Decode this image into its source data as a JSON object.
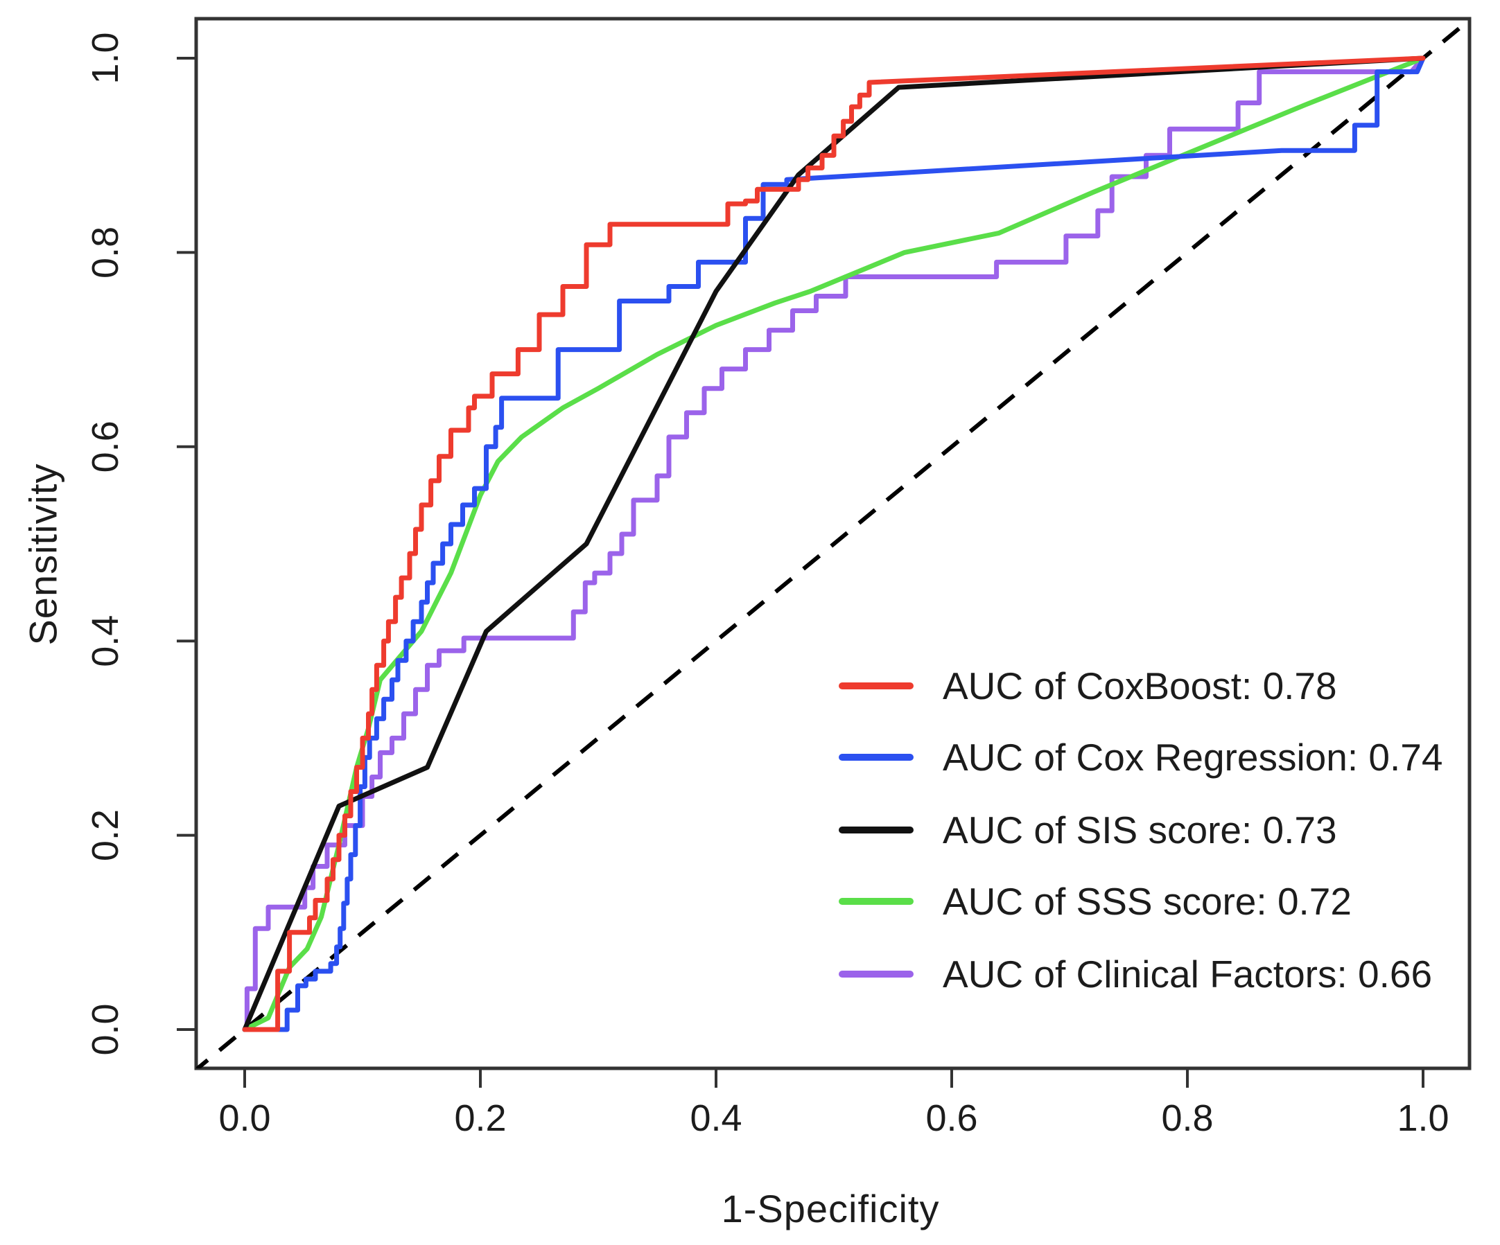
{
  "figure": {
    "background": "#ffffff",
    "axis_color": "#333333",
    "text_color": "#1c1c1c"
  },
  "chart_data": {
    "type": "line",
    "subtype": "ROC curves",
    "title": "",
    "xlabel": "1-Specificity",
    "ylabel": "Sensitivity",
    "xlim": [
      -0.045,
      1.045
    ],
    "ylim": [
      -0.045,
      1.045
    ],
    "grid": "off",
    "legend_position": "bottom-right",
    "x_ticks": [
      0.0,
      0.2,
      0.4,
      0.6,
      0.8,
      1.0
    ],
    "y_ticks": [
      0.0,
      0.2,
      0.4,
      0.6,
      0.8,
      1.0
    ],
    "x_tick_labels": [
      "0.0",
      "0.2",
      "0.4",
      "0.6",
      "0.8",
      "1.0"
    ],
    "y_tick_labels": [
      "0.0",
      "0.2",
      "0.4",
      "0.6",
      "0.8",
      "1.0"
    ],
    "diagonal_reference": {
      "style": "dashed",
      "color": "#000000",
      "points": [
        [
          -0.045,
          -0.045
        ],
        [
          1.045,
          1.045
        ]
      ]
    },
    "series": [
      {
        "name": "CoxBoost",
        "auc": 0.78,
        "legend_label": "AUC of CoxBoost: 0.78",
        "color": "#ee3b2e",
        "style": "step",
        "jumps": [
          [
            0.028,
            0.06
          ],
          [
            0.038,
            0.1
          ],
          [
            0.055,
            0.115
          ],
          [
            0.06,
            0.133
          ],
          [
            0.07,
            0.155
          ],
          [
            0.075,
            0.175
          ],
          [
            0.08,
            0.2
          ],
          [
            0.085,
            0.22
          ],
          [
            0.09,
            0.245
          ],
          [
            0.095,
            0.27
          ],
          [
            0.1,
            0.3
          ],
          [
            0.105,
            0.325
          ],
          [
            0.108,
            0.35
          ],
          [
            0.112,
            0.375
          ],
          [
            0.118,
            0.4
          ],
          [
            0.122,
            0.42
          ],
          [
            0.128,
            0.445
          ],
          [
            0.133,
            0.465
          ],
          [
            0.14,
            0.49
          ],
          [
            0.145,
            0.515
          ],
          [
            0.15,
            0.54
          ],
          [
            0.158,
            0.565
          ],
          [
            0.165,
            0.59
          ],
          [
            0.175,
            0.617
          ],
          [
            0.19,
            0.64
          ],
          [
            0.195,
            0.652
          ],
          [
            0.21,
            0.675
          ],
          [
            0.232,
            0.7
          ],
          [
            0.25,
            0.736
          ],
          [
            0.27,
            0.765
          ],
          [
            0.29,
            0.808
          ],
          [
            0.31,
            0.829
          ],
          [
            0.41,
            0.85
          ],
          [
            0.425,
            0.853
          ],
          [
            0.435,
            0.865
          ],
          [
            0.47,
            0.875
          ],
          [
            0.478,
            0.887
          ],
          [
            0.49,
            0.9
          ],
          [
            0.5,
            0.92
          ],
          [
            0.508,
            0.935
          ],
          [
            0.515,
            0.95
          ],
          [
            0.522,
            0.962
          ],
          [
            0.53,
            0.975
          ]
        ],
        "tail": [
          [
            1.0,
            1.0
          ]
        ]
      },
      {
        "name": "Cox Regression",
        "auc": 0.74,
        "legend_label": "AUC of Cox Regression: 0.74",
        "color": "#2b50f0",
        "style": "step",
        "jumps": [
          [
            0.036,
            0.02
          ],
          [
            0.045,
            0.045
          ],
          [
            0.052,
            0.052
          ],
          [
            0.06,
            0.06
          ],
          [
            0.073,
            0.068
          ],
          [
            0.078,
            0.085
          ],
          [
            0.081,
            0.104
          ],
          [
            0.084,
            0.13
          ],
          [
            0.087,
            0.155
          ],
          [
            0.09,
            0.18
          ],
          [
            0.094,
            0.21
          ],
          [
            0.098,
            0.25
          ],
          [
            0.102,
            0.28
          ],
          [
            0.106,
            0.3
          ],
          [
            0.112,
            0.32
          ],
          [
            0.118,
            0.34
          ],
          [
            0.125,
            0.36
          ],
          [
            0.13,
            0.38
          ],
          [
            0.137,
            0.4
          ],
          [
            0.143,
            0.42
          ],
          [
            0.15,
            0.44
          ],
          [
            0.155,
            0.46
          ],
          [
            0.16,
            0.48
          ],
          [
            0.168,
            0.5
          ],
          [
            0.175,
            0.52
          ],
          [
            0.185,
            0.54
          ],
          [
            0.195,
            0.557
          ],
          [
            0.205,
            0.6
          ],
          [
            0.213,
            0.62
          ],
          [
            0.218,
            0.65
          ],
          [
            0.266,
            0.7
          ],
          [
            0.318,
            0.75
          ],
          [
            0.36,
            0.765
          ],
          [
            0.385,
            0.79
          ],
          [
            0.425,
            0.835
          ],
          [
            0.44,
            0.87
          ],
          [
            0.46,
            0.875
          ]
        ],
        "tail": [
          [
            0.88,
            0.905
          ],
          [
            0.942,
            0.905
          ],
          [
            0.942,
            0.931
          ],
          [
            0.961,
            0.931
          ],
          [
            0.961,
            0.986
          ],
          [
            0.995,
            0.986
          ],
          [
            1.0,
            1.0
          ]
        ]
      },
      {
        "name": "SIS score",
        "auc": 0.73,
        "legend_label": "AUC of SIS score: 0.73",
        "color": "#111111",
        "style": "line",
        "points": [
          [
            0,
            0
          ],
          [
            0.08,
            0.23
          ],
          [
            0.155,
            0.27
          ],
          [
            0.205,
            0.41
          ],
          [
            0.29,
            0.5
          ],
          [
            0.4,
            0.76
          ],
          [
            0.47,
            0.88
          ],
          [
            0.555,
            0.97
          ],
          [
            1.0,
            1.0
          ]
        ]
      },
      {
        "name": "SSS score",
        "auc": 0.72,
        "legend_label": "AUC of SSS score: 0.72",
        "color": "#5ade49",
        "style": "line",
        "points": [
          [
            0,
            0
          ],
          [
            0.02,
            0.012
          ],
          [
            0.038,
            0.064
          ],
          [
            0.053,
            0.083
          ],
          [
            0.065,
            0.116
          ],
          [
            0.08,
            0.19
          ],
          [
            0.095,
            0.27
          ],
          [
            0.105,
            0.31
          ],
          [
            0.115,
            0.36
          ],
          [
            0.15,
            0.41
          ],
          [
            0.175,
            0.47
          ],
          [
            0.2,
            0.55
          ],
          [
            0.215,
            0.585
          ],
          [
            0.235,
            0.61
          ],
          [
            0.27,
            0.64
          ],
          [
            0.3,
            0.66
          ],
          [
            0.35,
            0.695
          ],
          [
            0.4,
            0.725
          ],
          [
            0.45,
            0.748
          ],
          [
            0.48,
            0.76
          ],
          [
            0.56,
            0.8
          ],
          [
            0.64,
            0.82
          ],
          [
            0.72,
            0.862
          ],
          [
            0.8,
            0.902
          ],
          [
            0.9,
            0.952
          ],
          [
            1.0,
            1.0
          ]
        ]
      },
      {
        "name": "Clinical Factors",
        "auc": 0.66,
        "legend_label": "AUC of Clinical Factors: 0.66",
        "color": "#9b63ea",
        "style": "step",
        "jumps": [
          [
            0.002,
            0.042
          ],
          [
            0.009,
            0.104
          ],
          [
            0.02,
            0.126
          ],
          [
            0.051,
            0.146
          ],
          [
            0.058,
            0.168
          ],
          [
            0.07,
            0.19
          ],
          [
            0.085,
            0.21
          ],
          [
            0.1,
            0.24
          ],
          [
            0.108,
            0.26
          ],
          [
            0.115,
            0.285
          ],
          [
            0.125,
            0.3
          ],
          [
            0.135,
            0.325
          ],
          [
            0.145,
            0.35
          ],
          [
            0.155,
            0.375
          ],
          [
            0.165,
            0.39
          ],
          [
            0.186,
            0.403
          ],
          [
            0.279,
            0.43
          ],
          [
            0.289,
            0.46
          ],
          [
            0.297,
            0.47
          ],
          [
            0.31,
            0.49
          ],
          [
            0.32,
            0.51
          ],
          [
            0.33,
            0.545
          ],
          [
            0.35,
            0.57
          ],
          [
            0.36,
            0.61
          ],
          [
            0.375,
            0.635
          ],
          [
            0.39,
            0.66
          ],
          [
            0.405,
            0.68
          ],
          [
            0.425,
            0.7
          ],
          [
            0.445,
            0.72
          ],
          [
            0.465,
            0.74
          ],
          [
            0.485,
            0.755
          ],
          [
            0.51,
            0.775
          ],
          [
            0.638,
            0.79
          ],
          [
            0.697,
            0.817
          ],
          [
            0.724,
            0.843
          ],
          [
            0.736,
            0.878
          ],
          [
            0.765,
            0.9
          ],
          [
            0.785,
            0.927
          ],
          [
            0.843,
            0.954
          ],
          [
            0.861,
            0.986
          ]
        ],
        "tail": [
          [
            0.99,
            0.986
          ],
          [
            1.0,
            1.0
          ]
        ]
      }
    ]
  }
}
